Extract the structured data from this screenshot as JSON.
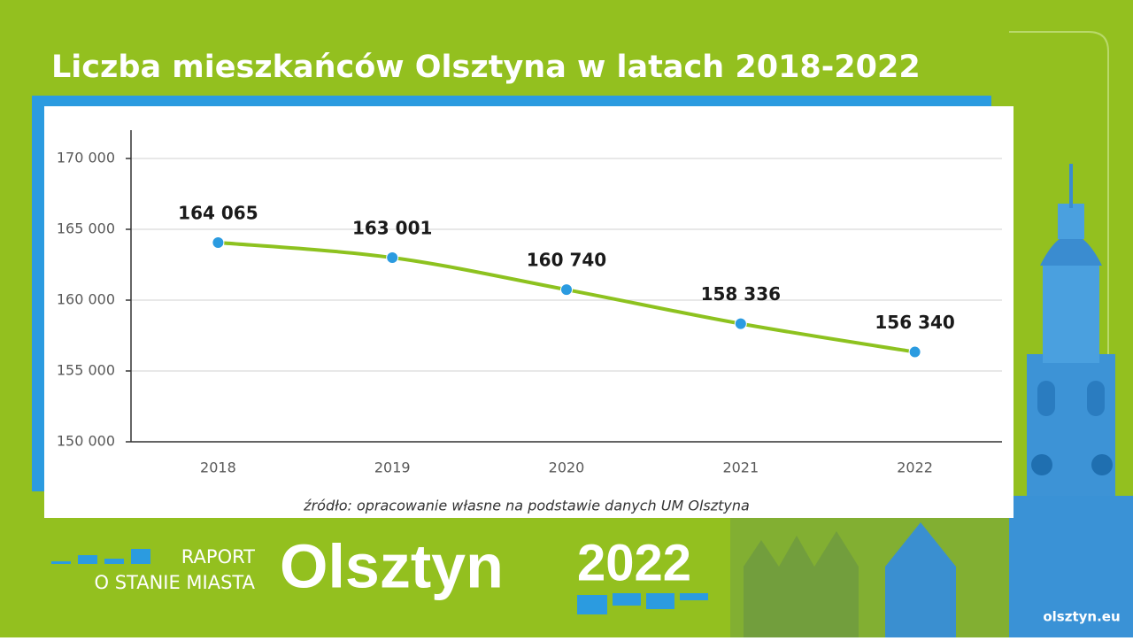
{
  "chart_data": {
    "type": "line",
    "title": "Liczba mieszkańców Olsztyna w latach 2018-2022",
    "source": "źródło: opracowanie własne na podstawie danych UM Olsztyna",
    "categories": [
      "2018",
      "2019",
      "2020",
      "2021",
      "2022"
    ],
    "series": [
      {
        "name": "Liczba mieszkańców",
        "color": "#8dc21f",
        "marker_color": "#2b9be0",
        "values": [
          164065,
          163001,
          160740,
          158336,
          156340
        ],
        "value_labels": [
          "164 065",
          "163 001",
          "160 740",
          "158 336",
          "156 340"
        ]
      }
    ],
    "ylim": [
      150000,
      172000
    ],
    "yticks": [
      {
        "value": 150000,
        "label": "150 000"
      },
      {
        "value": 155000,
        "label": "155 000"
      },
      {
        "value": 160000,
        "label": "160 000"
      },
      {
        "value": 165000,
        "label": "165 000"
      },
      {
        "value": 170000,
        "label": "170 000"
      }
    ],
    "grid": true
  },
  "footer": {
    "report_line1": "RAPORT",
    "report_line2": "O STANIE MIASTA",
    "city": "Olsztyn",
    "year": "2022",
    "website": "olsztyn.eu"
  }
}
